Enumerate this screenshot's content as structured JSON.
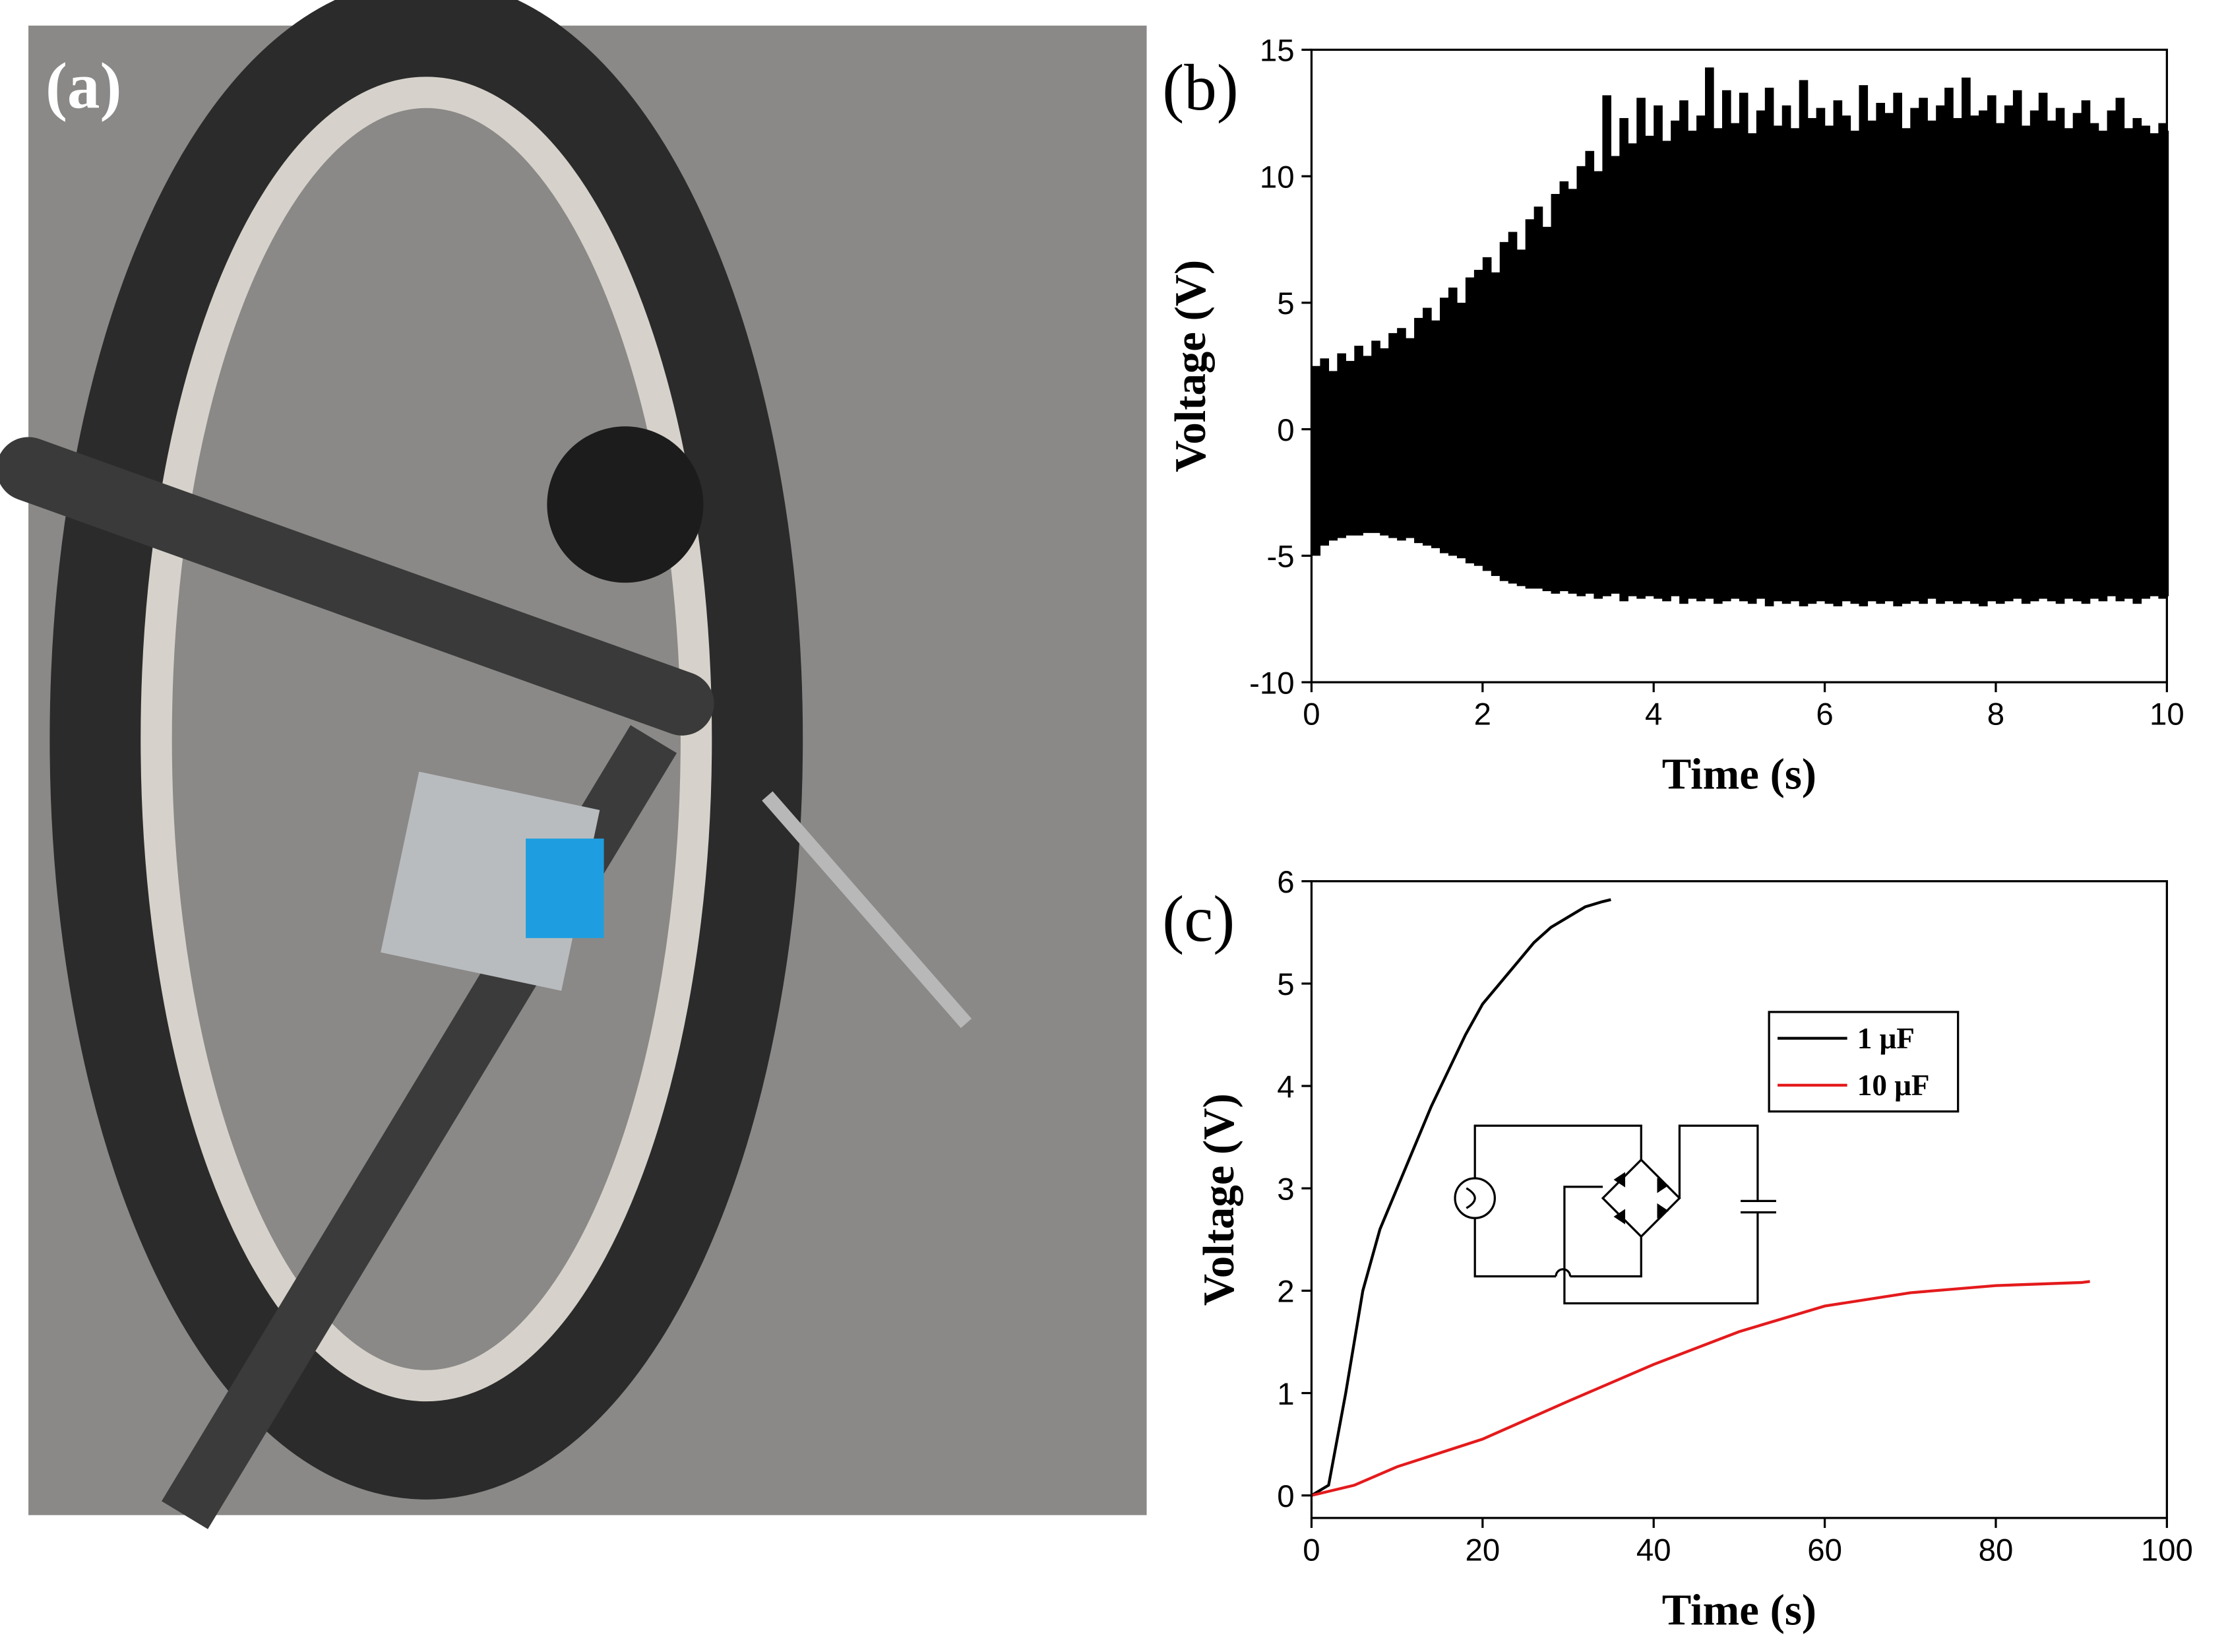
{
  "photo": {
    "label": "(a)"
  },
  "chart_data": [
    {
      "type": "area",
      "label": "(b)",
      "x_label": "Time (s)",
      "y_label": "Voltage (V)",
      "color": "#000000",
      "xlim": [
        0,
        10
      ],
      "xticks": [
        0,
        2,
        4,
        6,
        8,
        10
      ],
      "ylim": [
        -10,
        15
      ],
      "yticks": [
        -10,
        -5,
        0,
        5,
        10,
        15
      ],
      "x": [
        0,
        0.1,
        0.2,
        0.3,
        0.4,
        0.5,
        0.6,
        0.7,
        0.8,
        0.9,
        1,
        1.1,
        1.2,
        1.3,
        1.4,
        1.5,
        1.6,
        1.7,
        1.8,
        1.9,
        2,
        2.1,
        2.2,
        2.3,
        2.4,
        2.5,
        2.6,
        2.7,
        2.8,
        2.9,
        3,
        3.1,
        3.2,
        3.3,
        3.4,
        3.5,
        3.6,
        3.7,
        3.8,
        3.9,
        4,
        4.1,
        4.2,
        4.3,
        4.4,
        4.5,
        4.6,
        4.7,
        4.8,
        4.9,
        5,
        5.1,
        5.2,
        5.3,
        5.4,
        5.5,
        5.6,
        5.7,
        5.8,
        5.9,
        6,
        6.1,
        6.2,
        6.3,
        6.4,
        6.5,
        6.6,
        6.7,
        6.8,
        6.9,
        7,
        7.1,
        7.2,
        7.3,
        7.4,
        7.5,
        7.6,
        7.7,
        7.8,
        7.9,
        8,
        8.1,
        8.2,
        8.3,
        8.4,
        8.5,
        8.6,
        8.7,
        8.8,
        8.9,
        9,
        9.1,
        9.2,
        9.3,
        9.4,
        9.5,
        9.6,
        9.7,
        9.8,
        9.9,
        10
      ],
      "series": [
        {
          "color": "#000000",
          "values": [
            2.5,
            2.8,
            2.3,
            3.0,
            2.7,
            3.3,
            2.9,
            3.5,
            3.2,
            3.8,
            4.0,
            3.6,
            4.4,
            4.8,
            4.3,
            5.2,
            5.6,
            5.0,
            6.0,
            6.3,
            6.8,
            6.2,
            7.4,
            7.8,
            7.1,
            8.3,
            8.8,
            8.0,
            9.3,
            9.8,
            9.5,
            10.4,
            11.0,
            10.2,
            13.2,
            10.8,
            12.3,
            11.3,
            13.1,
            11.6,
            12.8,
            11.4,
            12.2,
            13.0,
            11.8,
            12.4,
            14.3,
            11.9,
            13.4,
            12.1,
            13.3,
            11.7,
            12.6,
            13.5,
            12.0,
            12.8,
            11.9,
            13.8,
            12.3,
            12.7,
            12.0,
            13.0,
            12.4,
            11.8,
            13.6,
            12.2,
            12.9,
            12.5,
            13.3,
            11.9,
            12.7,
            13.1,
            12.2,
            12.8,
            13.5,
            12.3,
            13.9,
            12.4,
            12.6,
            13.2,
            12.1,
            12.8,
            13.4,
            12.0,
            12.6,
            13.3,
            12.2,
            12.7,
            11.9,
            12.5,
            13.0,
            12.1,
            11.8,
            12.6,
            13.1,
            11.9,
            12.3,
            12.0,
            11.7,
            12.1,
            11.8
          ]
        },
        {
          "color": "#000000",
          "values": [
            -5.0,
            -4.6,
            -4.4,
            -4.3,
            -4.2,
            -4.2,
            -4.1,
            -4.1,
            -4.2,
            -4.3,
            -4.4,
            -4.3,
            -4.5,
            -4.6,
            -4.7,
            -4.9,
            -5.0,
            -5.1,
            -5.3,
            -5.4,
            -5.6,
            -5.8,
            -6.0,
            -6.1,
            -6.2,
            -6.3,
            -6.3,
            -6.4,
            -6.5,
            -6.4,
            -6.5,
            -6.6,
            -6.5,
            -6.7,
            -6.6,
            -6.5,
            -6.8,
            -6.6,
            -6.7,
            -6.6,
            -6.7,
            -6.8,
            -6.6,
            -6.9,
            -6.7,
            -6.8,
            -6.7,
            -6.9,
            -6.8,
            -6.7,
            -6.8,
            -6.9,
            -6.7,
            -7.0,
            -6.8,
            -6.9,
            -6.8,
            -7.0,
            -6.9,
            -6.8,
            -6.9,
            -7.0,
            -6.8,
            -6.9,
            -7.0,
            -6.8,
            -6.9,
            -6.8,
            -7.0,
            -6.9,
            -6.8,
            -6.9,
            -6.7,
            -6.9,
            -6.8,
            -6.9,
            -6.8,
            -6.9,
            -7.0,
            -6.8,
            -6.9,
            -6.8,
            -6.7,
            -6.9,
            -6.8,
            -6.7,
            -6.8,
            -6.9,
            -6.7,
            -6.8,
            -6.9,
            -6.7,
            -6.8,
            -6.6,
            -6.8,
            -6.7,
            -6.9,
            -6.7,
            -6.6,
            -6.7,
            -6.6
          ]
        }
      ]
    },
    {
      "type": "line",
      "label": "(c)",
      "x_label": "Time (s)",
      "y_label": "Voltage (V)",
      "legend": "upper-right",
      "xlim": [
        0,
        100
      ],
      "xticks": [
        0,
        20,
        40,
        60,
        80,
        100
      ],
      "ylim": [
        -0.22,
        6
      ],
      "yticks": [
        0,
        1,
        2,
        3,
        4,
        5,
        6
      ],
      "series": [
        {
          "name": "1 μF",
          "color": "#000000",
          "x": [
            0,
            2,
            4,
            6,
            8,
            10,
            12,
            14,
            16,
            18,
            20,
            22,
            24,
            26,
            28,
            30,
            32,
            34,
            35
          ],
          "values": [
            0,
            0.1,
            1.0,
            2.0,
            2.6,
            3.0,
            3.4,
            3.8,
            4.15,
            4.5,
            4.8,
            5.0,
            5.2,
            5.4,
            5.55,
            5.65,
            5.75,
            5.8,
            5.82
          ]
        },
        {
          "name": "10 μF",
          "color": "#e41a1c",
          "x": [
            0,
            5,
            10,
            20,
            30,
            40,
            50,
            60,
            70,
            80,
            90,
            91
          ],
          "values": [
            0,
            0.1,
            0.28,
            0.55,
            0.92,
            1.28,
            1.6,
            1.85,
            1.98,
            2.05,
            2.08,
            2.09
          ]
        }
      ]
    }
  ]
}
